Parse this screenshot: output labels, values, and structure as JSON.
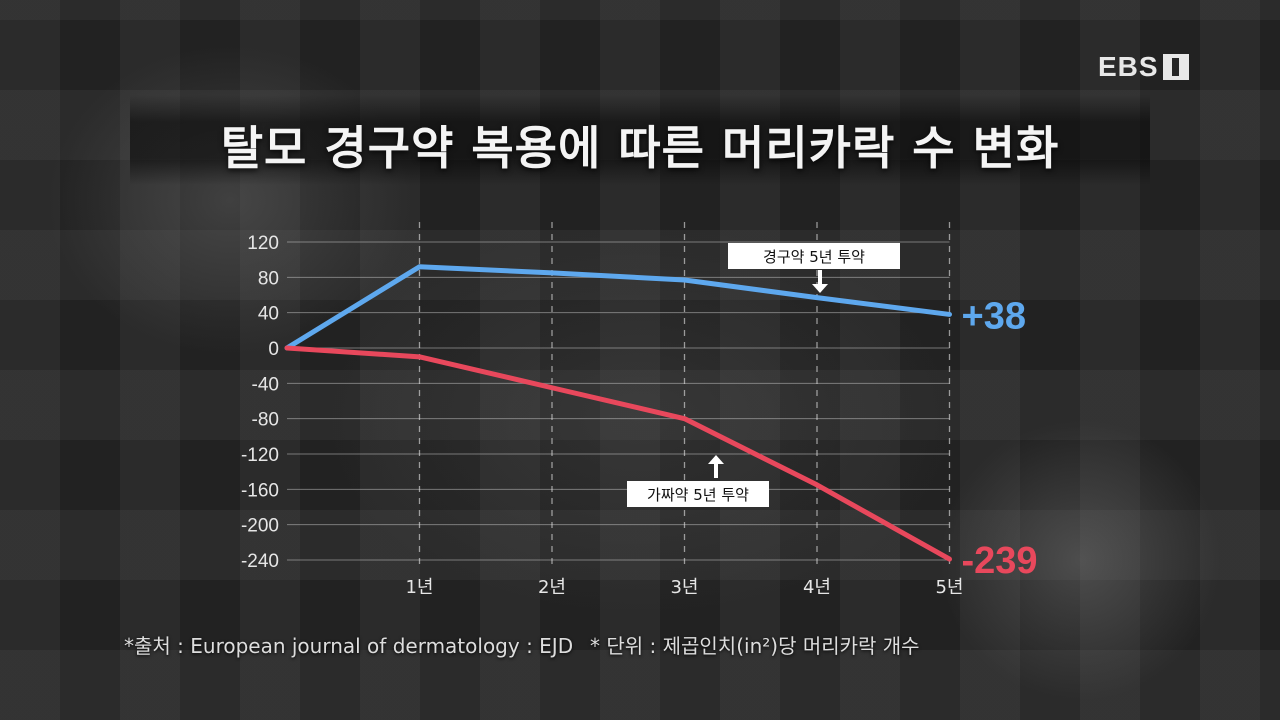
{
  "broadcaster": {
    "logo_text": "EBS"
  },
  "title": "탈모 경구약 복용에 따른 머리카락 수 변화",
  "footnotes": {
    "source": "*출처 : European journal of dermatology : EJD",
    "unit": "* 단위 : 제곱인치(in²)당 머리카락 개수"
  },
  "chart_data": {
    "type": "line",
    "title": "탈모 경구약 복용에 따른 머리카락 수 변화",
    "x": [
      0,
      1,
      2,
      3,
      4,
      5
    ],
    "x_tick_labels": [
      "1년",
      "2년",
      "3년",
      "4년",
      "5년"
    ],
    "ylim": [
      -240,
      120
    ],
    "y_ticks": [
      120,
      80,
      40,
      0,
      -40,
      -80,
      -120,
      -160,
      -200,
      -240
    ],
    "y_tick_labels": [
      "120",
      "80",
      "40",
      "0",
      "-40",
      "-80",
      "-120",
      "-160",
      "-200",
      "-240"
    ],
    "grid": true,
    "series": [
      {
        "id": "drug",
        "color": "#5ea8ee",
        "values": [
          0,
          92,
          85,
          77,
          57,
          38
        ]
      },
      {
        "id": "placebo",
        "color": "#e8485c",
        "values": [
          0,
          -10,
          -45,
          -80,
          -155,
          -239
        ]
      }
    ],
    "end_labels": {
      "drug": "+38",
      "placebo": "-239"
    },
    "annotations": [
      {
        "series": "drug",
        "text": "경구약 5년 투약",
        "arrow": "down"
      },
      {
        "series": "placebo",
        "text": "가짜약 5년 투약",
        "arrow": "up"
      }
    ]
  }
}
